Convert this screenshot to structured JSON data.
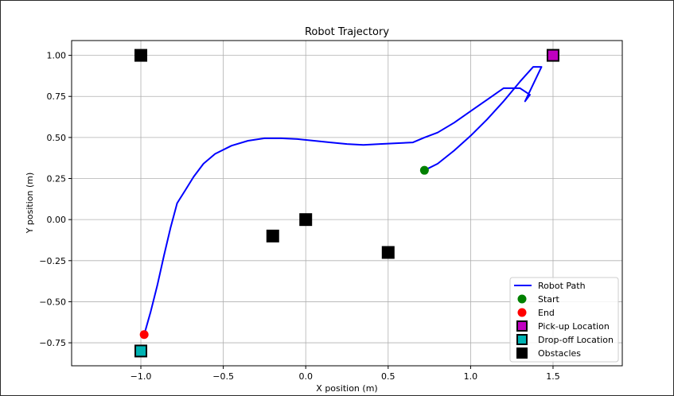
{
  "chart_data": {
    "type": "scatter",
    "title": "Robot Trajectory",
    "xlabel": "X position (m)",
    "ylabel": "Y position (m)",
    "xlim": [
      -1.42,
      1.92
    ],
    "ylim": [
      -0.89,
      1.09
    ],
    "xticks": [
      -1.0,
      -0.5,
      0.0,
      0.5,
      1.0,
      1.5
    ],
    "xtick_labels": [
      "−1.0",
      "−0.5",
      "0.0",
      "0.5",
      "1.0",
      "1.5"
    ],
    "yticks": [
      1.0,
      0.75,
      0.5,
      0.25,
      0.0,
      -0.25,
      -0.5,
      -0.75
    ],
    "ytick_labels": [
      "1.00",
      "0.75",
      "0.50",
      "0.25",
      "0.00",
      "−0.25",
      "−0.50",
      "−0.75"
    ],
    "grid": true,
    "legend_position": "lower-right",
    "series": [
      {
        "name": "Robot Path",
        "kind": "line",
        "color": "#0000ff",
        "x": [
          0.72,
          0.8,
          0.9,
          1.0,
          1.1,
          1.2,
          1.3,
          1.38,
          1.43,
          1.33,
          1.36,
          1.3,
          1.2,
          1.1,
          1.0,
          0.9,
          0.8,
          0.72,
          0.65,
          0.55,
          0.45,
          0.35,
          0.25,
          0.15,
          0.05,
          -0.05,
          -0.15,
          -0.25,
          -0.35,
          -0.45,
          -0.55,
          -0.62,
          -0.68,
          -0.73,
          -0.78,
          -0.82,
          -0.86,
          -0.9,
          -0.94,
          -0.98
        ],
        "y": [
          0.3,
          0.34,
          0.42,
          0.51,
          0.61,
          0.72,
          0.84,
          0.93,
          0.93,
          0.72,
          0.76,
          0.8,
          0.8,
          0.73,
          0.66,
          0.59,
          0.53,
          0.5,
          0.47,
          0.465,
          0.46,
          0.455,
          0.46,
          0.47,
          0.48,
          0.49,
          0.495,
          0.495,
          0.48,
          0.45,
          0.4,
          0.34,
          0.26,
          0.18,
          0.1,
          -0.05,
          -0.22,
          -0.4,
          -0.56,
          -0.7
        ]
      },
      {
        "name": "Start",
        "kind": "point",
        "color": "#008000",
        "marker": "circle",
        "x": [
          0.72
        ],
        "y": [
          0.3
        ]
      },
      {
        "name": "End",
        "kind": "point",
        "color": "#ff0000",
        "marker": "circle",
        "x": [
          -0.98
        ],
        "y": [
          -0.7
        ]
      },
      {
        "name": "Pick-up Location",
        "kind": "point",
        "color": "#c000c0",
        "marker": "square",
        "x": [
          1.5
        ],
        "y": [
          1.0
        ]
      },
      {
        "name": "Drop-off Location",
        "kind": "point",
        "color": "#00b3b3",
        "marker": "square",
        "x": [
          -1.0
        ],
        "y": [
          -0.8
        ]
      },
      {
        "name": "Obstacles",
        "kind": "point",
        "color": "#000000",
        "marker": "square",
        "x": [
          -1.0,
          -0.2,
          0.0,
          0.5
        ],
        "y": [
          1.0,
          -0.1,
          0.0,
          -0.2
        ]
      }
    ]
  }
}
